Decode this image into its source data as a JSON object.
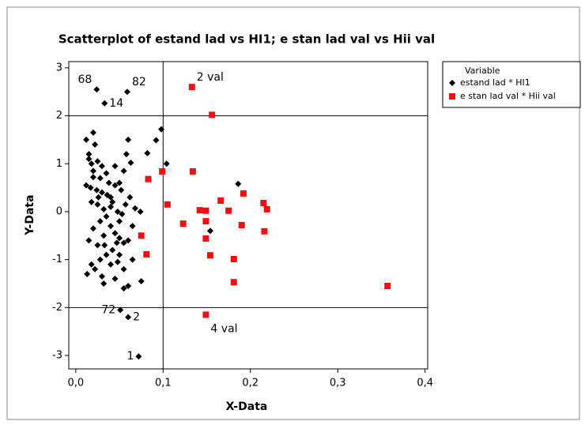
{
  "chart_data": {
    "type": "scatter",
    "title": "Scatterplot of estand lad vs HI1; e stan lad val vs Hii val",
    "xlabel": "X-Data",
    "ylabel": "Y-Data",
    "xlim": [
      -0.008,
      0.403
    ],
    "ylim": [
      -3.28,
      3.13
    ],
    "xticks": [
      {
        "value": 0,
        "label": "0,0"
      },
      {
        "value": 0.1,
        "label": "0,1"
      },
      {
        "value": 0.2,
        "label": "0,2"
      },
      {
        "value": 0.3,
        "label": "0,3"
      },
      {
        "value": 0.4,
        "label": "0,4"
      }
    ],
    "yticks": [
      -3,
      -2,
      -1,
      0,
      1,
      2,
      3
    ],
    "reference_lines": {
      "x": [
        0.1
      ],
      "y": [
        2,
        -2
      ]
    },
    "legend": {
      "title": "Variable",
      "position": "right"
    },
    "series": [
      {
        "name": "estand lad * HI1",
        "color": "#000000",
        "marker": "diamond",
        "x": [
          0.012,
          0.02,
          0.022,
          0.015,
          0.018,
          0.025,
          0.03,
          0.035,
          0.02,
          0.028,
          0.012,
          0.017,
          0.024,
          0.03,
          0.036,
          0.04,
          0.045,
          0.05,
          0.055,
          0.045,
          0.06,
          0.058,
          0.018,
          0.025,
          0.032,
          0.04,
          0.048,
          0.053,
          0.057,
          0.062,
          0.035,
          0.028,
          0.02,
          0.015,
          0.025,
          0.032,
          0.04,
          0.045,
          0.05,
          0.055,
          0.06,
          0.065,
          0.05,
          0.042,
          0.035,
          0.028,
          0.018,
          0.013,
          0.022,
          0.03,
          0.04,
          0.048,
          0.055,
          0.06,
          0.055,
          0.045,
          0.032,
          0.065,
          0.05,
          0.038,
          0.042,
          0.026,
          0.033,
          0.047,
          0.052,
          0.02,
          0.015,
          0.098,
          0.092,
          0.082,
          0.104,
          0.186,
          0.154,
          0.075,
          0.074,
          0.068,
          0.063,
          0.024,
          0.059,
          0.033,
          0.051,
          0.06,
          0.072
        ],
        "values": [
          1.5,
          1.65,
          1.4,
          1.2,
          1.0,
          1.05,
          0.95,
          0.8,
          0.85,
          0.7,
          0.55,
          0.5,
          0.45,
          0.4,
          0.35,
          0.3,
          0.55,
          0.6,
          0.85,
          0.95,
          1.5,
          1.2,
          0.2,
          0.15,
          0.05,
          0.1,
          0.0,
          -0.05,
          0.15,
          0.3,
          -0.1,
          -0.2,
          -0.35,
          -0.6,
          -0.7,
          -0.5,
          -0.3,
          -0.45,
          -0.55,
          -0.65,
          -0.6,
          -0.3,
          -0.2,
          -0.8,
          -0.9,
          -1.0,
          -1.1,
          -1.3,
          -1.2,
          -1.35,
          -1.1,
          -1.05,
          -1.2,
          -1.55,
          -1.6,
          -1.4,
          -1.5,
          -1.0,
          -0.9,
          0.6,
          0.2,
          0.3,
          -0.7,
          -0.65,
          0.45,
          0.72,
          1.1,
          1.72,
          1.49,
          1.22,
          1.0,
          0.58,
          -0.4,
          -1.45,
          0.0,
          0.07,
          1.02,
          2.55,
          2.5,
          2.26,
          -2.05,
          -2.2,
          -3.02
        ]
      },
      {
        "name": "e stan lad val * Hii val",
        "color": "#ee1111",
        "marker": "square",
        "x": [
          0.133,
          0.156,
          0.099,
          0.083,
          0.134,
          0.105,
          0.123,
          0.142,
          0.149,
          0.149,
          0.149,
          0.154,
          0.166,
          0.175,
          0.192,
          0.19,
          0.181,
          0.181,
          0.215,
          0.219,
          0.216,
          0.075,
          0.081,
          0.149,
          0.357
        ],
        "values": [
          2.6,
          2.02,
          0.84,
          0.68,
          0.84,
          0.15,
          -0.25,
          0.03,
          0.02,
          -0.2,
          -0.56,
          -0.91,
          0.23,
          0.02,
          0.38,
          -0.28,
          -0.99,
          -1.47,
          0.18,
          0.05,
          -0.41,
          -0.5,
          -0.89,
          -2.15,
          -1.55
        ]
      }
    ],
    "annotations": [
      {
        "text": "68",
        "x": 0.024,
        "y": 2.55
      },
      {
        "text": "82",
        "x": 0.059,
        "y": 2.5
      },
      {
        "text": "14",
        "x": 0.033,
        "y": 2.26
      },
      {
        "text": "2 val",
        "x": 0.133,
        "y": 2.6
      },
      {
        "text": "72",
        "x": 0.051,
        "y": -2.05
      },
      {
        "text": "2",
        "x": 0.06,
        "y": -2.2
      },
      {
        "text": "4 val",
        "x": 0.149,
        "y": -2.15
      },
      {
        "text": "1",
        "x": 0.072,
        "y": -3.02
      }
    ]
  }
}
